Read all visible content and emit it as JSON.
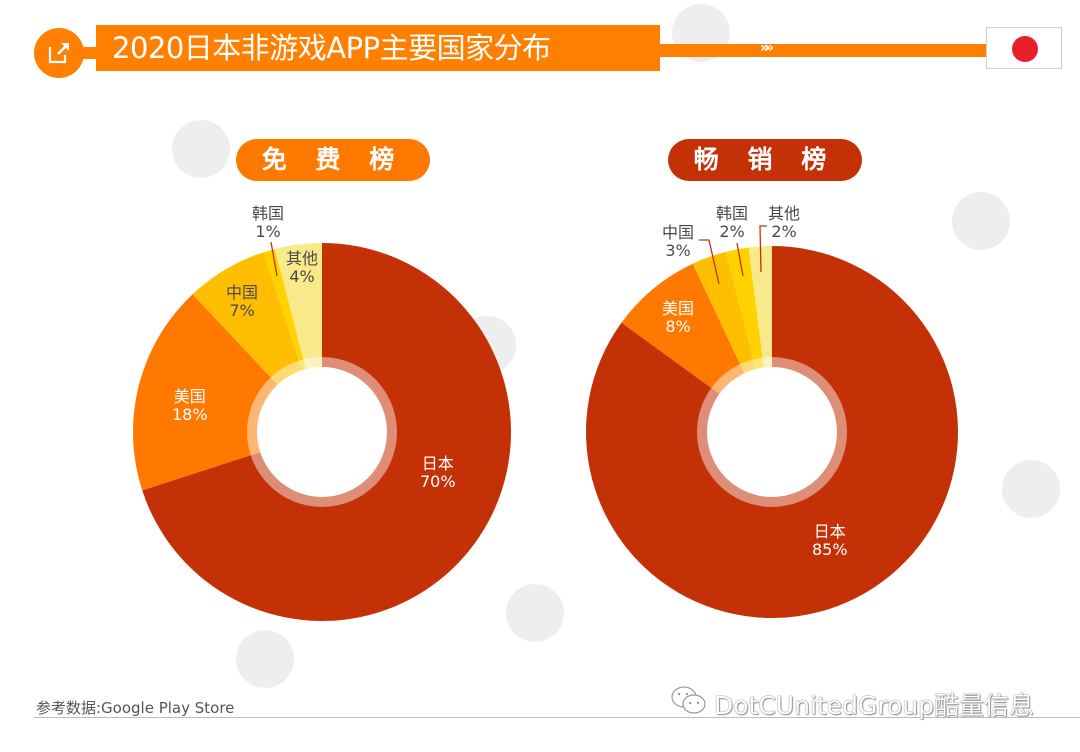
{
  "header": {
    "icon": "external-link-icon",
    "title": "2020日本非游戏APP主要国家分布",
    "decoration": "»»",
    "flag": "japan-flag-icon"
  },
  "colors": {
    "accent": "#FF7F00",
    "japan": "#C43107",
    "usa": "#FF7900",
    "china": "#FFBF00",
    "korea": "#FFD200",
    "others": "#F8E98A",
    "flag_red": "#E8202B"
  },
  "charts": {
    "free": {
      "label": "免 费 榜",
      "segments": [
        {
          "name": "日本",
          "pct": "70%"
        },
        {
          "name": "美国",
          "pct": "18%"
        },
        {
          "name": "中国",
          "pct": "7%"
        },
        {
          "name": "韩国",
          "pct": "1%"
        },
        {
          "name": "其他",
          "pct": "4%"
        }
      ]
    },
    "paid": {
      "label": "畅 销 榜",
      "segments": [
        {
          "name": "日本",
          "pct": "85%"
        },
        {
          "name": "美国",
          "pct": "8%"
        },
        {
          "name": "中国",
          "pct": "3%"
        },
        {
          "name": "韩国",
          "pct": "2%"
        },
        {
          "name": "其他",
          "pct": "2%"
        }
      ]
    }
  },
  "chart_data": [
    {
      "type": "pie",
      "title": "免费榜",
      "categories": [
        "日本",
        "美国",
        "中国",
        "韩国",
        "其他"
      ],
      "values": [
        70,
        18,
        7,
        1,
        4
      ],
      "unit": "%",
      "donut": true
    },
    {
      "type": "pie",
      "title": "畅销榜",
      "categories": [
        "日本",
        "美国",
        "中国",
        "韩国",
        "其他"
      ],
      "values": [
        85,
        8,
        3,
        2,
        2
      ],
      "unit": "%",
      "donut": true
    }
  ],
  "footer": {
    "source": "参考数据:Google Play Store",
    "brand": "DotCUnitedGroup酷量信息"
  }
}
